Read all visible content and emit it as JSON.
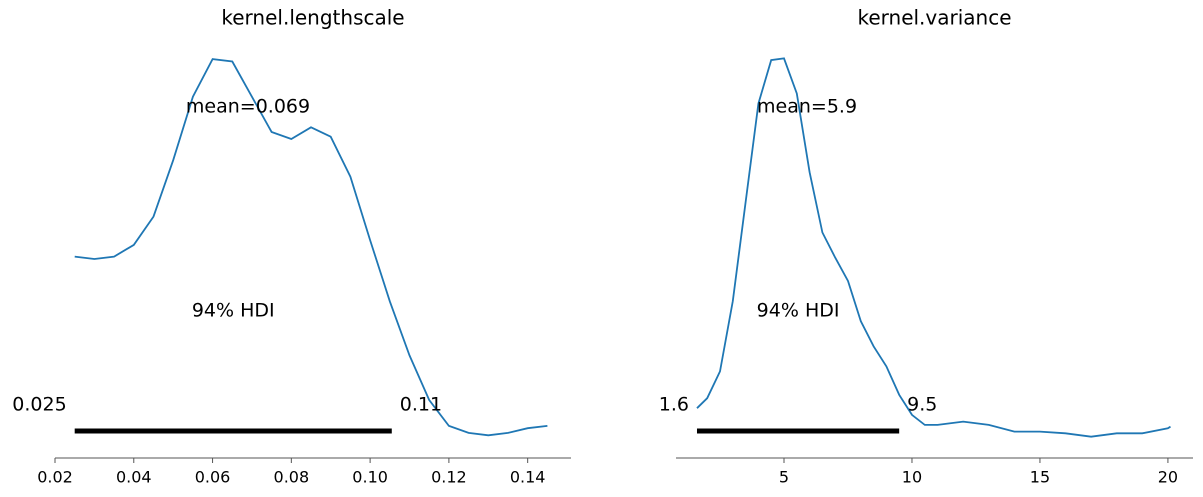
{
  "chart_data": [
    {
      "type": "line",
      "title": "kernel.lengthscale",
      "x": [
        0.025,
        0.03,
        0.035,
        0.04,
        0.045,
        0.05,
        0.055,
        0.06,
        0.065,
        0.07,
        0.075,
        0.08,
        0.085,
        0.09,
        0.095,
        0.1,
        0.105,
        0.11,
        0.115,
        0.12,
        0.125,
        0.13,
        0.135,
        0.14,
        0.145
      ],
      "values": [
        7.8,
        7.7,
        7.8,
        8.3,
        9.5,
        11.9,
        14.6,
        16.2,
        16.1,
        14.6,
        13.1,
        12.8,
        13.3,
        12.9,
        11.2,
        8.5,
        5.9,
        3.6,
        1.7,
        0.6,
        0.3,
        0.2,
        0.3,
        0.5,
        0.6
      ],
      "color": "#1f77b4",
      "xlim": [
        0.02,
        0.151
      ],
      "xticks": [
        0.02,
        0.04,
        0.06,
        0.08,
        {
          "value": 0.1,
          "label": "0.10"
        },
        0.12,
        0.14
      ],
      "ylim": [
        0,
        16.8
      ],
      "mean": {
        "value": 0.069,
        "label": "mean=0.069"
      },
      "hdi": [
        0.025,
        {
          "value": 0.1055,
          "label": "0.11"
        }
      ],
      "hdi_label": "94% HDI"
    },
    {
      "type": "line",
      "title": "kernel.variance",
      "x": [
        1.6,
        2,
        2.5,
        3,
        3.5,
        4,
        4.5,
        5,
        5.5,
        6,
        6.5,
        7,
        7.5,
        8,
        8.5,
        9,
        9.5,
        10,
        10.5,
        11,
        12,
        13,
        14,
        15,
        16,
        17,
        18,
        19,
        20,
        20.1
      ],
      "values": [
        0.019,
        0.025,
        0.041,
        0.083,
        0.142,
        0.201,
        0.227,
        0.228,
        0.207,
        0.16,
        0.124,
        0.109,
        0.095,
        0.071,
        0.056,
        0.044,
        0.027,
        0.015,
        0.009,
        0.009,
        0.011,
        0.009,
        0.005,
        0.005,
        0.004,
        0.002,
        0.004,
        0.004,
        0.007,
        0.008
      ],
      "color": "#1f77b4",
      "xlim": [
        0.78,
        20.98
      ],
      "xticks": [
        5,
        10,
        15,
        20
      ],
      "ylim": [
        0,
        0.236
      ],
      "mean": {
        "value": 5.9,
        "label": "mean=5.9"
      },
      "hdi": [
        1.6,
        9.5
      ],
      "hdi_label": "94% HDI"
    }
  ]
}
